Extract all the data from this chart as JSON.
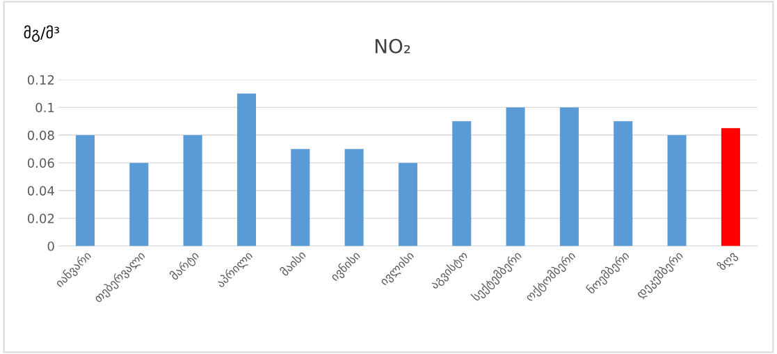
{
  "chart_data": {
    "type": "bar",
    "title": "NO₂",
    "ylabel": "მგ/მ³",
    "categories": [
      "იანვარი",
      "თებერვალი",
      "მარტი",
      "აპრილი",
      "მაისი",
      "ივნისი",
      "ივლისი",
      "აგვისტო",
      "სექტემბერი",
      "ოქტომბერი",
      "ნოემბერი",
      "დეკემბერი",
      "ზღვ"
    ],
    "values": [
      0.08,
      0.06,
      0.08,
      0.11,
      0.07,
      0.07,
      0.06,
      0.09,
      0.1,
      0.1,
      0.09,
      0.08,
      0.085
    ],
    "colors": [
      "#5b9bd5",
      "#5b9bd5",
      "#5b9bd5",
      "#5b9bd5",
      "#5b9bd5",
      "#5b9bd5",
      "#5b9bd5",
      "#5b9bd5",
      "#5b9bd5",
      "#5b9bd5",
      "#5b9bd5",
      "#5b9bd5",
      "#ff0000"
    ],
    "ylim": [
      0,
      0.12
    ],
    "yticks": [
      0,
      0.02,
      0.04,
      0.06,
      0.08,
      0.1,
      0.12
    ],
    "grid": "y",
    "legend": false
  }
}
